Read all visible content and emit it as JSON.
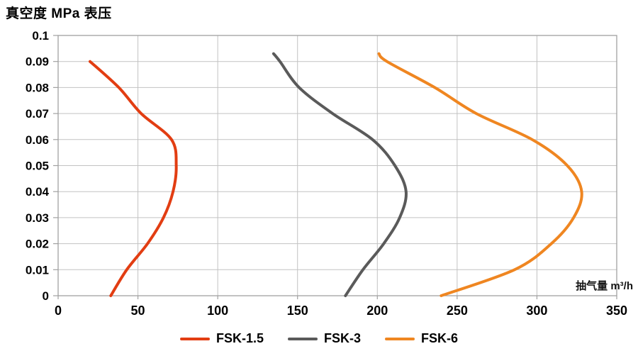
{
  "title": "真空度 MPa 表压",
  "axis": {
    "x_label": "抽气量 m³/h",
    "x_tick_labels": [
      "0",
      "50",
      "100",
      "150",
      "200",
      "250",
      "300",
      "350"
    ],
    "y_tick_labels": [
      "0.1",
      "0.09",
      "0.08",
      "0.07",
      "0.06",
      "0.05",
      "0.04",
      "0.03",
      "0.02",
      "0.01",
      "0"
    ]
  },
  "chart_data": {
    "type": "line",
    "title": "真空度 MPa 表压",
    "xlabel": "抽气量 m³/h",
    "ylabel": "真空度 MPa 表压",
    "xlim": [
      0,
      350
    ],
    "ylim": [
      0,
      0.1
    ],
    "x_ticks": [
      0,
      50,
      100,
      150,
      200,
      250,
      300,
      350
    ],
    "y_ticks": [
      0,
      0.01,
      0.02,
      0.03,
      0.04,
      0.05,
      0.06,
      0.07,
      0.08,
      0.09,
      0.1
    ],
    "grid": true,
    "grid_color": "#c2c2c2",
    "border_color": "#a0a0a0",
    "legend_position": "bottom",
    "series": [
      {
        "name": "FSK-1.5",
        "color": "#e23d12",
        "points": [
          [
            33,
            0
          ],
          [
            43,
            0.01
          ],
          [
            56,
            0.02
          ],
          [
            66,
            0.03
          ],
          [
            72,
            0.04
          ],
          [
            74,
            0.05
          ],
          [
            71,
            0.06
          ],
          [
            52,
            0.07
          ],
          [
            38,
            0.08
          ],
          [
            20,
            0.09
          ]
        ]
      },
      {
        "name": "FSK-3",
        "color": "#5a5a5a",
        "points": [
          [
            180,
            0
          ],
          [
            191,
            0.01
          ],
          [
            204,
            0.02
          ],
          [
            214,
            0.03
          ],
          [
            218,
            0.04
          ],
          [
            211,
            0.05
          ],
          [
            197,
            0.06
          ],
          [
            172,
            0.07
          ],
          [
            151,
            0.08
          ],
          [
            139,
            0.09
          ],
          [
            135,
            0.093
          ]
        ]
      },
      {
        "name": "FSK-6",
        "color": "#ef8621",
        "points": [
          [
            240,
            0
          ],
          [
            286,
            0.01
          ],
          [
            309,
            0.02
          ],
          [
            323,
            0.03
          ],
          [
            328,
            0.04
          ],
          [
            319,
            0.05
          ],
          [
            297,
            0.06
          ],
          [
            262,
            0.07
          ],
          [
            236,
            0.08
          ],
          [
            206,
            0.09
          ],
          [
            201,
            0.093
          ]
        ]
      }
    ]
  }
}
